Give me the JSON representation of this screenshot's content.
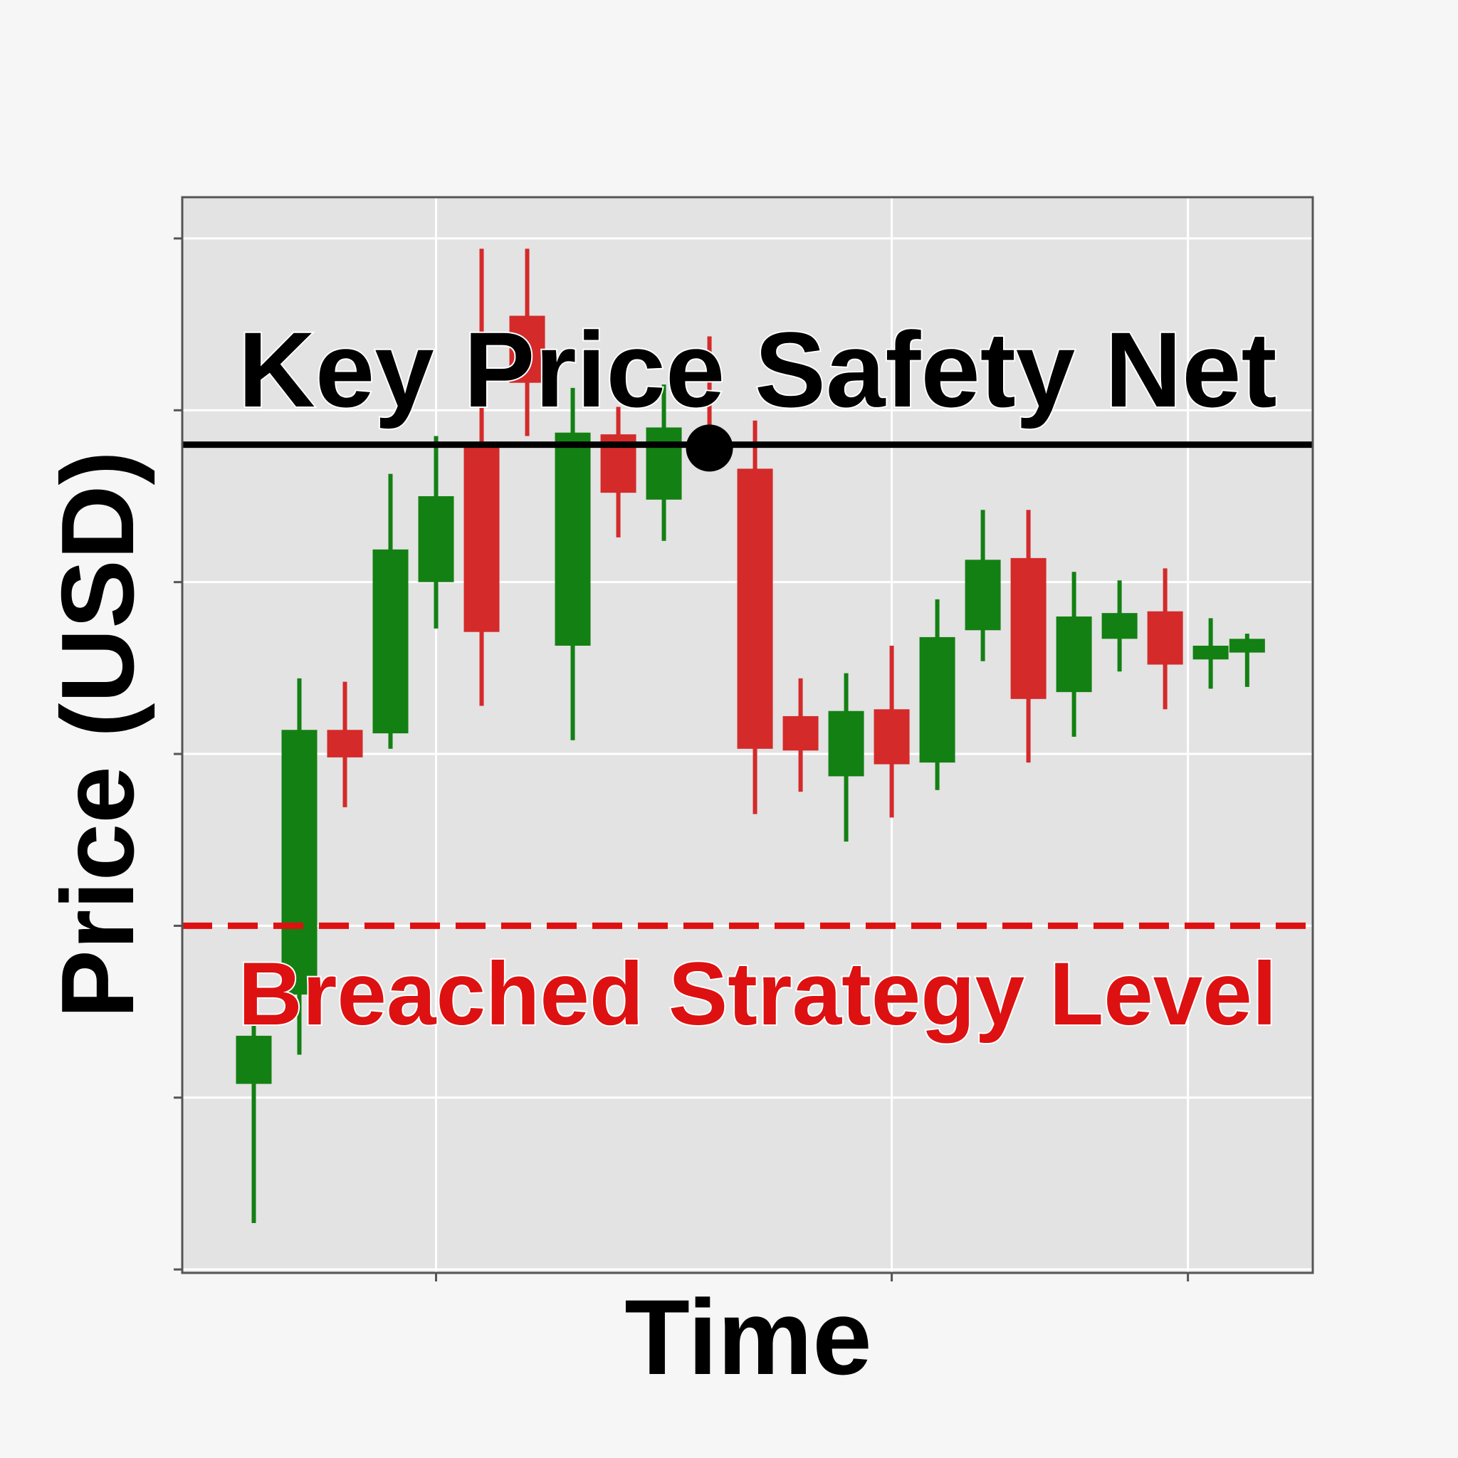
{
  "chart_data": {
    "type": "candlestick",
    "x": [
      0,
      1,
      2,
      3,
      4,
      5,
      6,
      7,
      8,
      9,
      10,
      11,
      12,
      13,
      14,
      15,
      16,
      17,
      18,
      19,
      20,
      21,
      21.8
    ],
    "open": [
      1.08,
      1.6,
      3.14,
      3.12,
      4.0,
      4.79,
      5.55,
      3.63,
      4.86,
      4.48,
      4.87,
      4.66,
      3.22,
      2.87,
      3.26,
      2.95,
      3.72,
      4.14,
      3.36,
      3.67,
      3.83,
      3.55,
      3.59
    ],
    "high": [
      1.52,
      3.44,
      3.42,
      4.63,
      4.85,
      5.94,
      5.94,
      5.13,
      5.02,
      5.15,
      5.43,
      4.94,
      3.44,
      3.47,
      3.63,
      3.9,
      4.42,
      4.42,
      4.06,
      4.01,
      4.08,
      3.79,
      3.7
    ],
    "low": [
      0.27,
      1.25,
      2.69,
      3.03,
      3.73,
      3.28,
      4.85,
      3.08,
      4.26,
      4.24,
      4.68,
      2.65,
      2.78,
      2.49,
      2.63,
      2.79,
      3.54,
      2.95,
      3.1,
      3.48,
      3.26,
      3.38,
      3.39
    ],
    "close": [
      1.36,
      3.14,
      2.98,
      4.19,
      4.5,
      3.71,
      5.16,
      4.87,
      4.52,
      4.9,
      4.71,
      3.03,
      3.02,
      3.25,
      2.94,
      3.68,
      4.13,
      3.32,
      3.8,
      3.82,
      3.52,
      3.63,
      3.67
    ],
    "up_color": "#138013",
    "down_color": "#d42a2a",
    "xlabel": "Time",
    "ylabel": "Price (USD)",
    "xlim": [
      -1.57,
      23.24
    ],
    "xticks": [
      4,
      14,
      20.5
    ],
    "ylim": [
      -0.02,
      6.24
    ],
    "yticks": [
      0,
      1,
      2,
      3,
      4,
      5,
      6
    ],
    "grid": true,
    "lines": [
      {
        "label": "Key Price Safety Net",
        "value": 4.8,
        "color": "#000000",
        "dashed": false
      },
      {
        "label": "Breached Strategy Level",
        "value": 2.0,
        "color": "#dd1111",
        "dashed": true
      }
    ],
    "marker": {
      "x": 10,
      "y": 4.78,
      "color": "#000000"
    }
  }
}
